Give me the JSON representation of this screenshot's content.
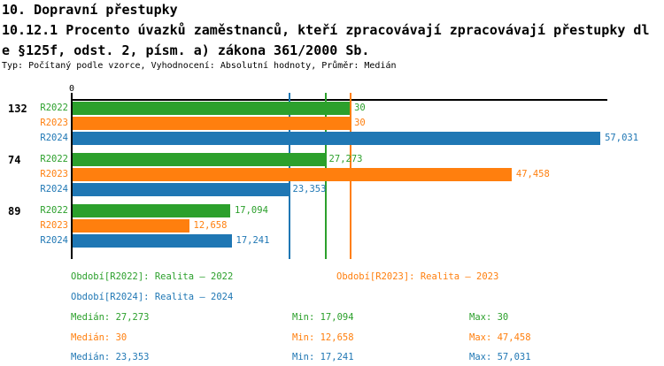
{
  "header": {
    "section_title": "10. Dopravní přestupky",
    "indicator_line1": "10.12.1 Procento úvazků zaměstnanců, kteří zpracovávají zpracovávají přestupky dl",
    "indicator_line2": "e §125f, odst. 2, písm. a) zákona 361/2000 Sb.",
    "meta": "Typ: Počítaný podle vzorce, Vyhodnocení: Absolutní hodnoty, Průměr: Medián"
  },
  "chart_data": {
    "type": "bar",
    "orientation": "horizontal",
    "axis": {
      "zero_label": "0",
      "min": 0,
      "max": 57.8,
      "grid": "median-lines-only"
    },
    "series": [
      {
        "name": "R2022",
        "color": "#2CA02C",
        "median": 27.273
      },
      {
        "name": "R2023",
        "color": "#FF7F0E",
        "median": 30
      },
      {
        "name": "R2024",
        "color": "#1F77B4",
        "median": 23.353
      }
    ],
    "groups": [
      {
        "label": "132",
        "values": [
          30,
          30,
          57.031
        ],
        "value_labels": [
          "30",
          "30",
          "57,031"
        ]
      },
      {
        "label": "74",
        "values": [
          27.273,
          47.458,
          23.353
        ],
        "value_labels": [
          "27,273",
          "47,458",
          "23,353"
        ]
      },
      {
        "label": "89",
        "values": [
          17.094,
          12.658,
          17.241
        ],
        "value_labels": [
          "17,094",
          "12,658",
          "17,241"
        ]
      }
    ]
  },
  "legend": {
    "periods": [
      {
        "text": "Období[R2022]: Realita – 2022",
        "color": "#2CA02C"
      },
      {
        "text": "Období[R2023]: Realita – 2023",
        "color": "#FF7F0E"
      },
      {
        "text": "Období[R2024]: Realita – 2024",
        "color": "#1F77B4"
      }
    ],
    "stats": [
      {
        "median": "Medián: 27,273",
        "min": "Min: 17,094",
        "max": "Max: 30",
        "color": "#2CA02C"
      },
      {
        "median": "Medián: 30",
        "min": "Min: 12,658",
        "max": "Max: 47,458",
        "color": "#FF7F0E"
      },
      {
        "median": "Medián: 23,353",
        "min": "Min: 17,241",
        "max": "Max: 57,031",
        "color": "#1F77B4"
      }
    ]
  }
}
